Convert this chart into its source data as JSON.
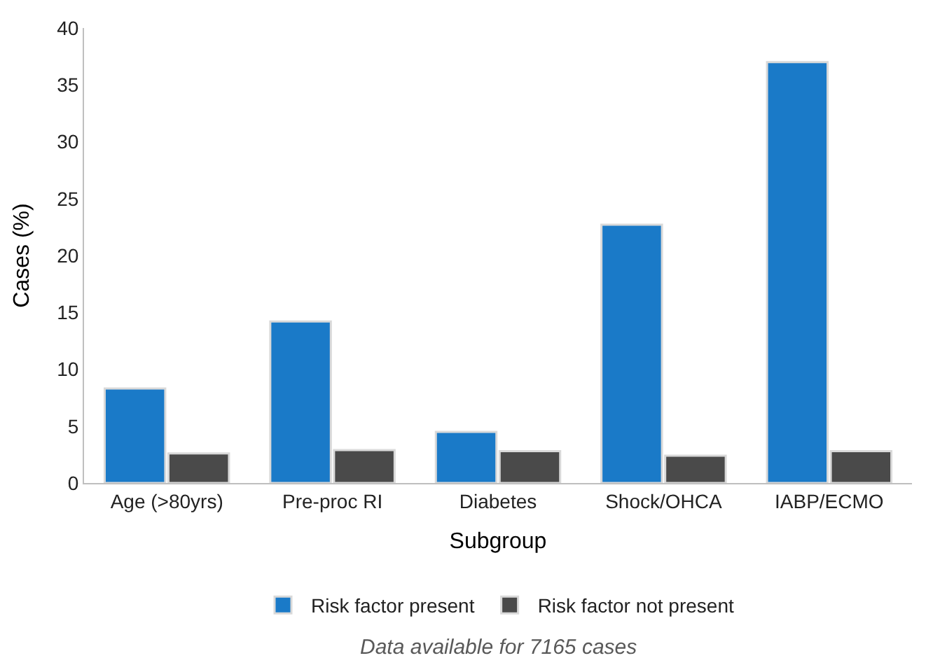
{
  "chart_data": {
    "type": "bar",
    "xlabel": "Subgroup",
    "ylabel": "Cases (%)",
    "categories": [
      "Age (>80yrs)",
      "Pre-proc RI",
      "Diabetes",
      "Shock/OHCA",
      "IABP/ECMO"
    ],
    "series": [
      {
        "name": "Risk factor present",
        "color": "#1a7ac8",
        "values": [
          8.3,
          14.2,
          4.5,
          22.7,
          37.0
        ]
      },
      {
        "name": "Risk factor not present",
        "color": "#4a4a4a",
        "values": [
          2.6,
          2.9,
          2.8,
          2.4,
          2.8
        ]
      }
    ],
    "ylim": [
      0,
      40
    ],
    "yticks": [
      0,
      5,
      10,
      15,
      20,
      25,
      30,
      35,
      40
    ],
    "legend": "bottom",
    "annotations": [
      "Data available for 7165 cases"
    ]
  }
}
